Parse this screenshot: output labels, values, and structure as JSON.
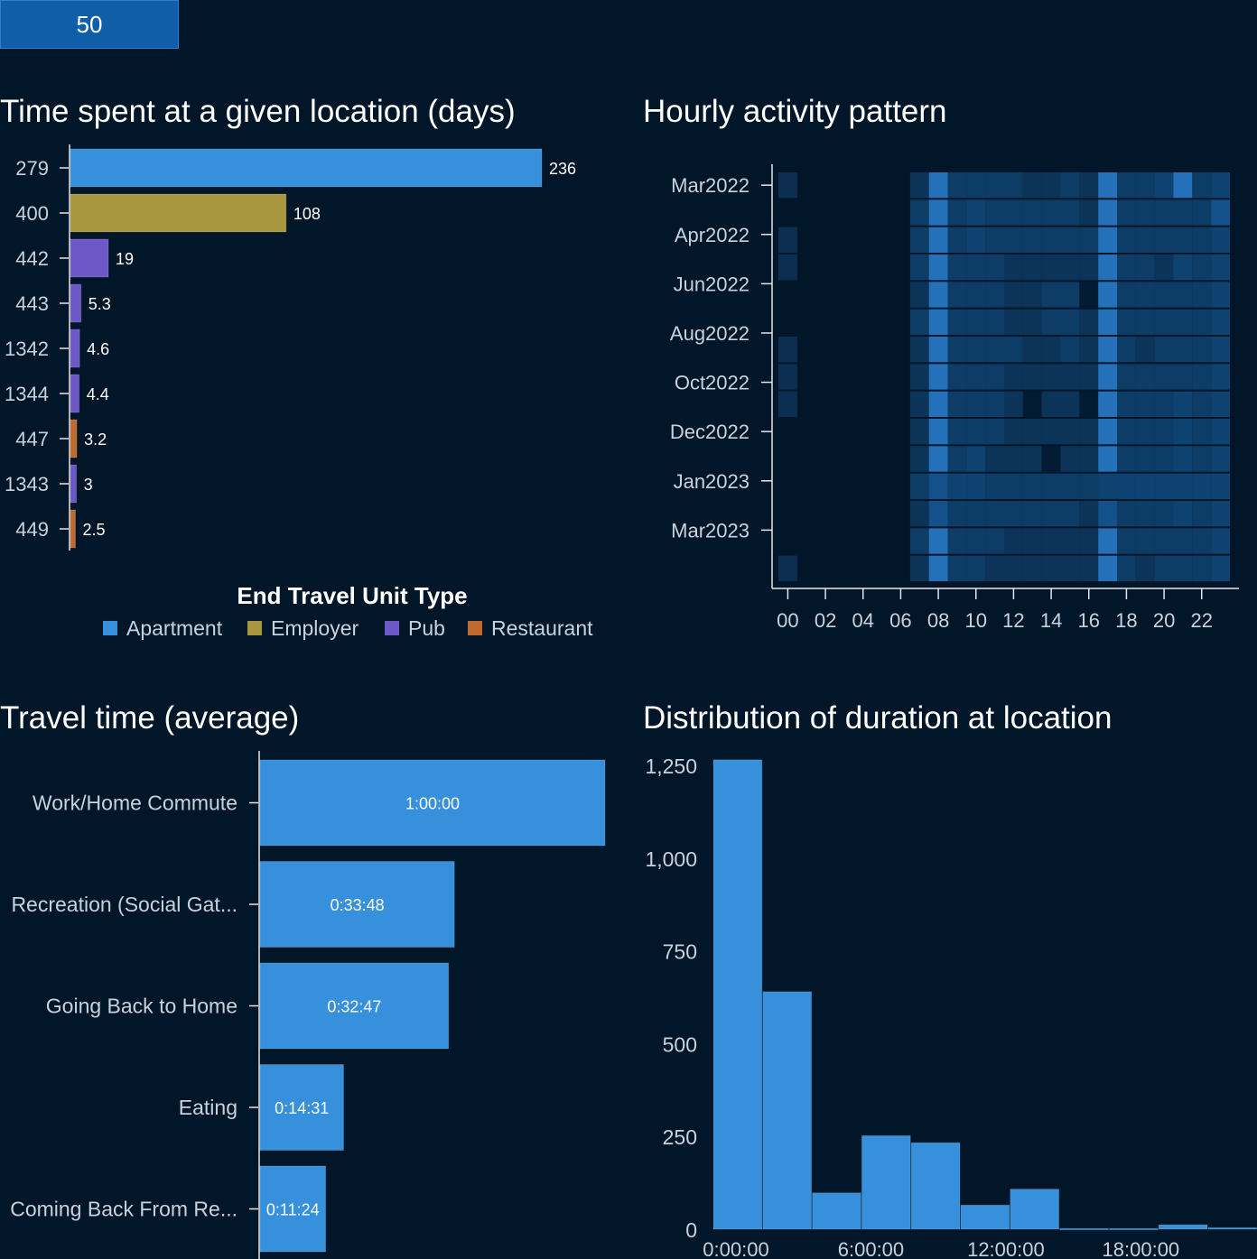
{
  "selector": {
    "value": "50"
  },
  "panels": {
    "location_time": {
      "title": "Time spent at a given location (days)"
    },
    "hourly": {
      "title": "Hourly activity pattern"
    },
    "travel": {
      "title": "Travel time (average)"
    },
    "duration": {
      "title": "Distribution of duration at location"
    }
  },
  "colors": {
    "Apartment": "#3690dc",
    "Employer": "#a99740",
    "Pub": "#6d58c8",
    "Restaurant": "#c06a30",
    "bar": "#3690dc",
    "heat_low": "#031c34",
    "heat_high": "#2a78c4"
  },
  "chart_data": [
    {
      "id": "location_time",
      "type": "bar",
      "orientation": "horizontal",
      "title": "Time spent at a given location (days)",
      "categories": [
        "279",
        "400",
        "442",
        "443",
        "1342",
        "1344",
        "447",
        "1343",
        "449"
      ],
      "values": [
        236,
        108,
        19,
        5.3,
        4.6,
        4.4,
        3.2,
        3,
        2.5
      ],
      "value_labels": [
        "236",
        "108",
        "19",
        "5.3",
        "4.6",
        "4.4",
        "3.2",
        "3",
        "2.5"
      ],
      "groups": [
        "Apartment",
        "Employer",
        "Pub",
        "Pub",
        "Pub",
        "Pub",
        "Restaurant",
        "Pub",
        "Restaurant"
      ],
      "legend": {
        "title": "End Travel Unit Type",
        "entries": [
          "Apartment",
          "Employer",
          "Pub",
          "Restaurant"
        ],
        "position": "bottom"
      },
      "xlim": [
        0,
        236
      ]
    },
    {
      "id": "hourly",
      "type": "heatmap",
      "title": "Hourly activity pattern",
      "x_ticks": [
        "00",
        "02",
        "04",
        "06",
        "08",
        "10",
        "12",
        "14",
        "16",
        "18",
        "20",
        "22"
      ],
      "y_tick_labels": [
        "Mar2022",
        "Apr2022",
        "Jun2022",
        "Aug2022",
        "Oct2022",
        "Dec2022",
        "Jan2023",
        "Mar2023"
      ],
      "y_tick_rows": [
        0.5,
        2.3,
        4.1,
        5.9,
        7.7,
        9.5,
        11.3,
        13.1
      ],
      "hours": 24,
      "rows": 15,
      "cells": [
        [
          1,
          0,
          0,
          0,
          0,
          0,
          0,
          2,
          6,
          3,
          3,
          3,
          3,
          2,
          2,
          3,
          2,
          6,
          3,
          3,
          4,
          6,
          3,
          4
        ],
        [
          0,
          0,
          0,
          0,
          0,
          0,
          0,
          3,
          6,
          3,
          4,
          3,
          3,
          3,
          3,
          3,
          2,
          6,
          3,
          3,
          3,
          3,
          3,
          5
        ],
        [
          1,
          0,
          0,
          0,
          0,
          0,
          0,
          3,
          6,
          3,
          4,
          3,
          3,
          3,
          3,
          3,
          3,
          6,
          3,
          3,
          3,
          3,
          3,
          4
        ],
        [
          1,
          0,
          0,
          0,
          0,
          0,
          0,
          3,
          6,
          3,
          3,
          3,
          2,
          2,
          2,
          2,
          2,
          6,
          3,
          3,
          2,
          4,
          3,
          4
        ],
        [
          0,
          0,
          0,
          0,
          0,
          0,
          0,
          2,
          6,
          3,
          3,
          3,
          2,
          2,
          3,
          3,
          0,
          6,
          3,
          3,
          3,
          3,
          3,
          4
        ],
        [
          0,
          0,
          0,
          0,
          0,
          0,
          0,
          3,
          6,
          3,
          3,
          3,
          2,
          2,
          3,
          3,
          2,
          6,
          3,
          3,
          3,
          3,
          3,
          4
        ],
        [
          1,
          0,
          0,
          0,
          0,
          0,
          0,
          2,
          6,
          3,
          3,
          3,
          3,
          2,
          2,
          3,
          2,
          6,
          3,
          2,
          3,
          3,
          3,
          4
        ],
        [
          1,
          0,
          0,
          0,
          0,
          0,
          0,
          2,
          6,
          3,
          3,
          3,
          2,
          2,
          2,
          2,
          2,
          6,
          3,
          3,
          3,
          3,
          3,
          4
        ],
        [
          1,
          0,
          0,
          0,
          0,
          0,
          0,
          2,
          6,
          3,
          3,
          3,
          2,
          0,
          2,
          2,
          0,
          6,
          3,
          3,
          3,
          4,
          3,
          4
        ],
        [
          0,
          0,
          0,
          0,
          0,
          0,
          0,
          2,
          6,
          3,
          3,
          3,
          2,
          2,
          2,
          2,
          2,
          6,
          3,
          3,
          3,
          4,
          3,
          4
        ],
        [
          0,
          0,
          0,
          0,
          0,
          0,
          0,
          2,
          6,
          3,
          4,
          2,
          2,
          2,
          0,
          2,
          2,
          6,
          3,
          3,
          3,
          4,
          3,
          4
        ],
        [
          0,
          0,
          0,
          0,
          0,
          0,
          0,
          3,
          5,
          4,
          4,
          3,
          3,
          3,
          3,
          3,
          3,
          4,
          4,
          4,
          4,
          4,
          4,
          4
        ],
        [
          0,
          0,
          0,
          0,
          0,
          0,
          0,
          2,
          5,
          3,
          3,
          3,
          3,
          3,
          3,
          3,
          2,
          5,
          3,
          3,
          3,
          4,
          3,
          4
        ],
        [
          0,
          0,
          0,
          0,
          0,
          0,
          0,
          3,
          6,
          3,
          3,
          3,
          2,
          2,
          2,
          2,
          2,
          6,
          3,
          3,
          3,
          3,
          3,
          4
        ],
        [
          1,
          0,
          0,
          0,
          0,
          0,
          0,
          2,
          6,
          3,
          3,
          2,
          2,
          2,
          2,
          2,
          2,
          6,
          3,
          2,
          3,
          3,
          3,
          4
        ]
      ]
    },
    {
      "id": "travel",
      "type": "bar",
      "orientation": "horizontal",
      "title": "Travel time (average)",
      "categories": [
        "Work/Home Commute",
        "Recreation (Social Gat...",
        "Going Back to Home",
        "Eating",
        "Coming Back From Re..."
      ],
      "values_seconds": [
        3600,
        2028,
        1967,
        871,
        684
      ],
      "value_labels": [
        "1:00:00",
        "0:33:48",
        "0:32:47",
        "0:14:31",
        "0:11:24"
      ],
      "xlim": [
        0,
        3600
      ]
    },
    {
      "id": "duration",
      "type": "bar",
      "subtype": "histogram",
      "title": "Distribution of duration at location",
      "bin_width_hours": 2.2,
      "counts": [
        1265,
        640,
        98,
        252,
        233,
        65,
        108,
        2,
        2,
        12,
        4
      ],
      "ylim": [
        0,
        1250
      ],
      "y_ticks": [
        0,
        250,
        500,
        750,
        1000,
        1250
      ],
      "y_tick_labels": [
        "0",
        "250",
        "500",
        "750",
        "1,000",
        "1,250"
      ],
      "x_ticks_hours": [
        0,
        6,
        12,
        18
      ],
      "x_tick_labels": [
        "0:00:00",
        "6:00:00",
        "12:00:00",
        "18:00:00"
      ]
    }
  ]
}
